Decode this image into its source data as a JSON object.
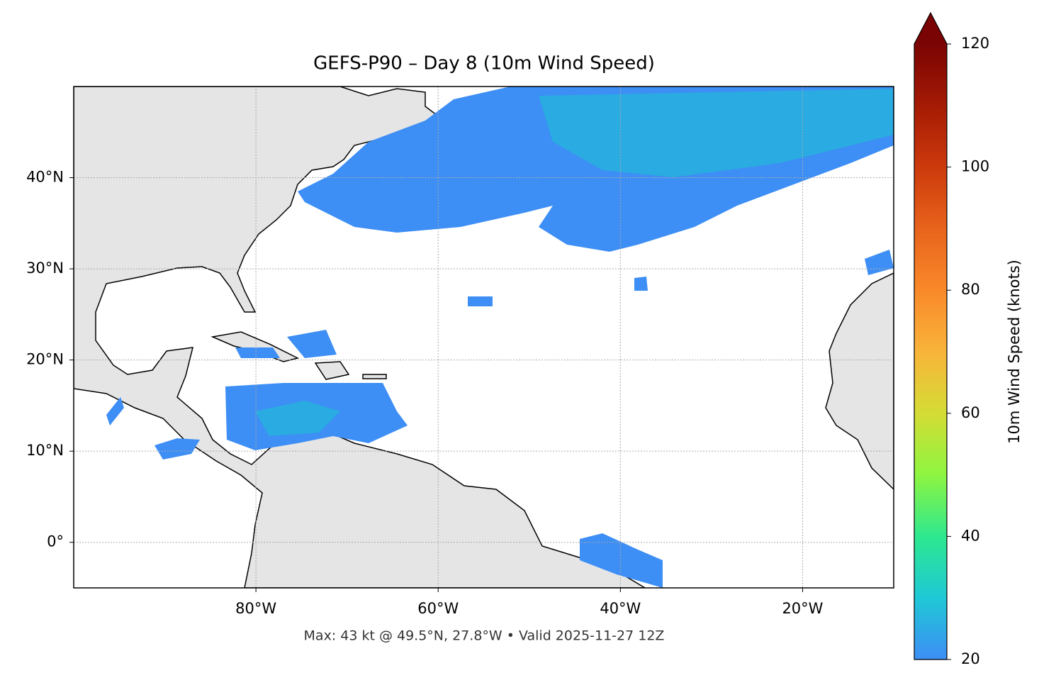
{
  "map": {
    "title": "GEFS-P90 – Day 8 (10m Wind Speed)",
    "footer": "Max: 43 kt @ 49.5°N, 27.8°W • Valid 2025-11-27 12Z",
    "xlim": [
      -100,
      -10
    ],
    "ylim": [
      -5,
      50
    ],
    "xticks": [
      {
        "value": -80,
        "label": "80°W"
      },
      {
        "value": -60,
        "label": "60°W"
      },
      {
        "value": -40,
        "label": "40°W"
      },
      {
        "value": -20,
        "label": "20°W"
      }
    ],
    "yticks": [
      {
        "value": 0,
        "label": "0°"
      },
      {
        "value": 10,
        "label": "10°N"
      },
      {
        "value": 20,
        "label": "20°N"
      },
      {
        "value": 30,
        "label": "30°N"
      },
      {
        "value": 40,
        "label": "40°N"
      }
    ],
    "grid": true,
    "colorbar": {
      "label": "10m Wind Speed (knots)",
      "lim": [
        20,
        120
      ],
      "ticks": [
        20,
        40,
        60,
        80,
        100,
        120
      ],
      "colors": [
        "#3d8ef5",
        "#1fc8d6",
        "#2ee88f",
        "#8ef540",
        "#d4dc35",
        "#f9b43a",
        "#f9892a",
        "#e8631c",
        "#cc3a0c",
        "#a51a04",
        "#7a0403"
      ]
    }
  }
}
